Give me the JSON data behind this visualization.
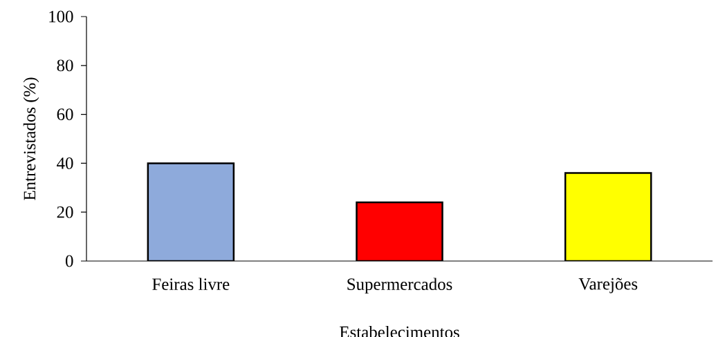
{
  "chart_data": {
    "type": "bar",
    "xlabel": "Estabelecimentos",
    "ylabel": "Entrevistados (%)",
    "categories": [
      "Feiras livre",
      "Supermercados",
      "Varejões"
    ],
    "values": [
      40,
      24,
      36
    ],
    "colors": [
      "#8eaadb",
      "#ff0000",
      "#ffff00"
    ],
    "ylim": [
      0,
      100
    ],
    "yticks": [
      0,
      20,
      40,
      60,
      80,
      100
    ],
    "grid": false
  }
}
